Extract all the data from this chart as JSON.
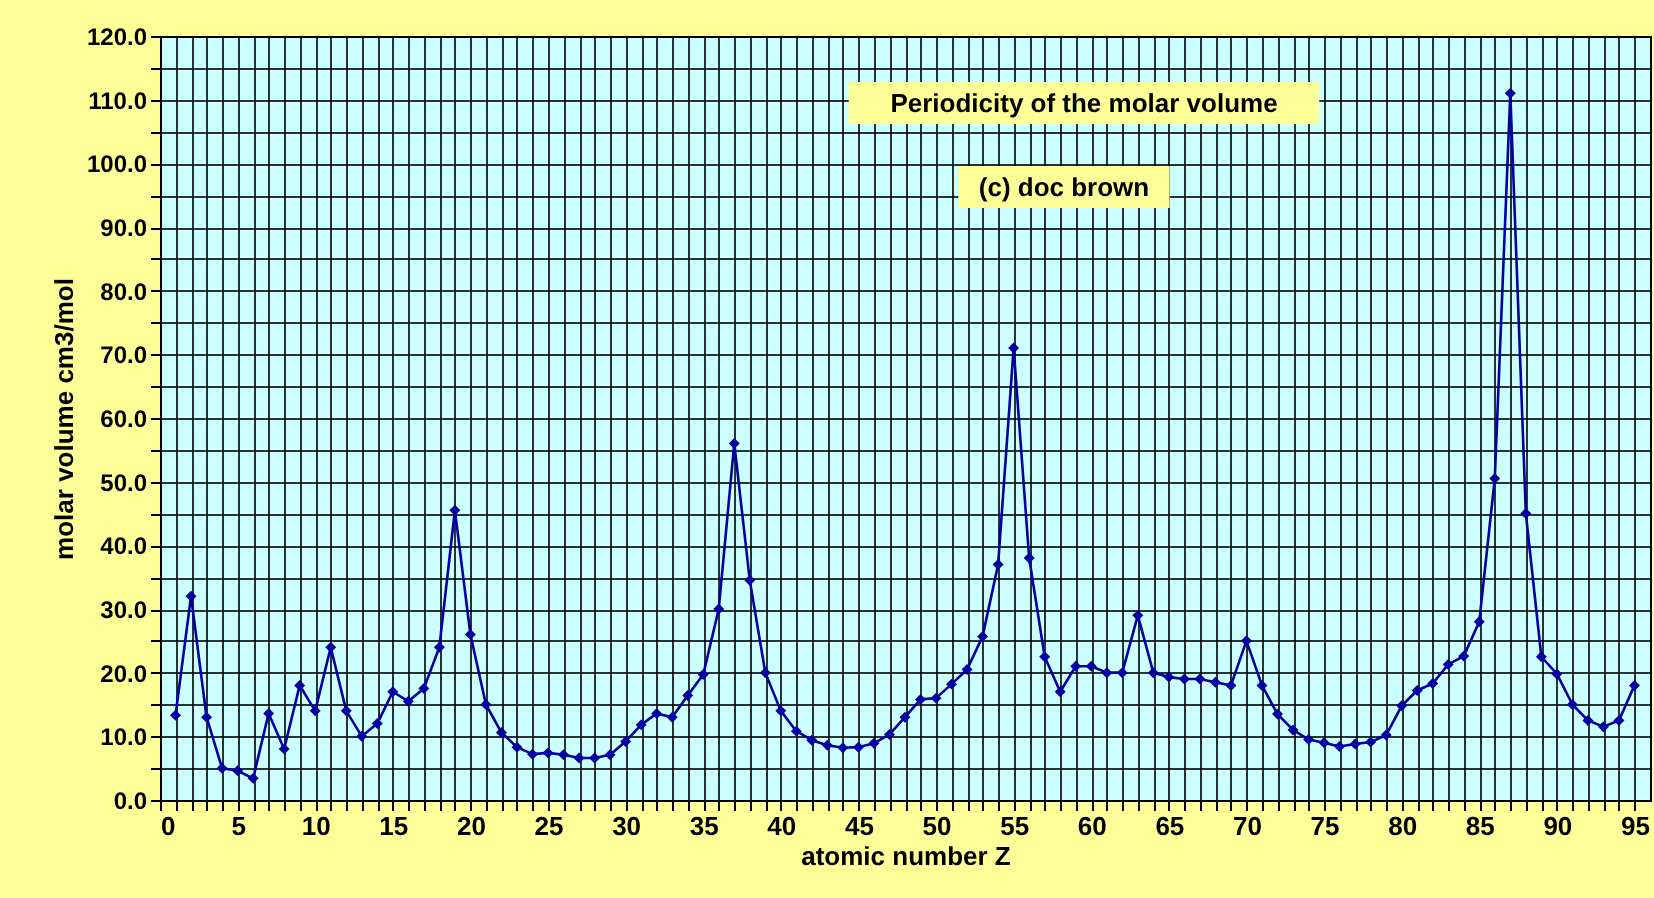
{
  "chart_data": {
    "type": "line",
    "title": "Periodicity of the molar volume",
    "annotations": [
      "(c) doc brown"
    ],
    "xlabel": "atomic number Z",
    "ylabel": "molar volume cm3/mol",
    "x": [
      1,
      2,
      3,
      4,
      5,
      6,
      7,
      8,
      9,
      10,
      11,
      12,
      13,
      14,
      15,
      16,
      17,
      18,
      19,
      20,
      21,
      22,
      23,
      24,
      25,
      26,
      27,
      28,
      29,
      30,
      31,
      32,
      33,
      34,
      35,
      36,
      37,
      38,
      39,
      40,
      41,
      42,
      43,
      44,
      45,
      46,
      47,
      48,
      49,
      50,
      51,
      52,
      53,
      54,
      55,
      56,
      57,
      58,
      59,
      60,
      61,
      62,
      63,
      64,
      65,
      66,
      67,
      68,
      69,
      70,
      71,
      72,
      73,
      74,
      75,
      76,
      77,
      78,
      79,
      80,
      81,
      82,
      83,
      84,
      85,
      86,
      87,
      88,
      89,
      90,
      91,
      92,
      93,
      94,
      95
    ],
    "series": [
      {
        "color": "#0000a0",
        "values": [
          13.3,
          32,
          13,
          5,
          4.6,
          3.4,
          13.6,
          8,
          18,
          14,
          24,
          14,
          10,
          12,
          17,
          15.5,
          17.5,
          24,
          45.5,
          26,
          15,
          10.6,
          8.3,
          7.2,
          7.4,
          7.1,
          6.6,
          6.6,
          7.1,
          9.2,
          11.8,
          13.6,
          13,
          16.4,
          19.7,
          30,
          56,
          34.5,
          20,
          14,
          10.8,
          9.4,
          8.6,
          8.2,
          8.3,
          8.9,
          10.3,
          13,
          15.8,
          16,
          18.2,
          20.5,
          25.7,
          37,
          71,
          38,
          22.5,
          17,
          21,
          21,
          20,
          20,
          29,
          20,
          19.3,
          19,
          19,
          18.5,
          18,
          25,
          18,
          13.5,
          11,
          9.5,
          9,
          8.4,
          8.8,
          9.1,
          10.2,
          14.8,
          17.2,
          18.3,
          21.3,
          22.6,
          28,
          50.5,
          111,
          45,
          22.5,
          19.8,
          15,
          12.5,
          11.5,
          12.5,
          18
        ]
      }
    ],
    "xlim": [
      0,
      96
    ],
    "ylim": [
      0,
      120
    ],
    "xticks": [
      0,
      {
        "value": 1,
        "label": null
      },
      {
        "value": 2,
        "label": null
      },
      {
        "value": 3,
        "label": null
      },
      {
        "value": 4,
        "label": null
      },
      5,
      {
        "value": 6,
        "label": null
      },
      {
        "value": 7,
        "label": null
      },
      {
        "value": 8,
        "label": null
      },
      {
        "value": 9,
        "label": null
      },
      10,
      {
        "value": 11,
        "label": null
      },
      {
        "value": 12,
        "label": null
      },
      {
        "value": 13,
        "label": null
      },
      {
        "value": 14,
        "label": null
      },
      15,
      {
        "value": 16,
        "label": null
      },
      {
        "value": 17,
        "label": null
      },
      {
        "value": 18,
        "label": null
      },
      {
        "value": 19,
        "label": null
      },
      20,
      {
        "value": 21,
        "label": null
      },
      {
        "value": 22,
        "label": null
      },
      {
        "value": 23,
        "label": null
      },
      {
        "value": 24,
        "label": null
      },
      25,
      {
        "value": 26,
        "label": null
      },
      {
        "value": 27,
        "label": null
      },
      {
        "value": 28,
        "label": null
      },
      {
        "value": 29,
        "label": null
      },
      30,
      {
        "value": 31,
        "label": null
      },
      {
        "value": 32,
        "label": null
      },
      {
        "value": 33,
        "label": null
      },
      {
        "value": 34,
        "label": null
      },
      35,
      {
        "value": 36,
        "label": null
      },
      {
        "value": 37,
        "label": null
      },
      {
        "value": 38,
        "label": null
      },
      {
        "value": 39,
        "label": null
      },
      40,
      {
        "value": 41,
        "label": null
      },
      {
        "value": 42,
        "label": null
      },
      {
        "value": 43,
        "label": null
      },
      {
        "value": 44,
        "label": null
      },
      45,
      {
        "value": 46,
        "label": null
      },
      {
        "value": 47,
        "label": null
      },
      {
        "value": 48,
        "label": null
      },
      {
        "value": 49,
        "label": null
      },
      50,
      {
        "value": 51,
        "label": null
      },
      {
        "value": 52,
        "label": null
      },
      {
        "value": 53,
        "label": null
      },
      {
        "value": 54,
        "label": null
      },
      55,
      {
        "value": 56,
        "label": null
      },
      {
        "value": 57,
        "label": null
      },
      {
        "value": 58,
        "label": null
      },
      {
        "value": 59,
        "label": null
      },
      60,
      {
        "value": 61,
        "label": null
      },
      {
        "value": 62,
        "label": null
      },
      {
        "value": 63,
        "label": null
      },
      {
        "value": 64,
        "label": null
      },
      65,
      {
        "value": 66,
        "label": null
      },
      {
        "value": 67,
        "label": null
      },
      {
        "value": 68,
        "label": null
      },
      {
        "value": 69,
        "label": null
      },
      70,
      {
        "value": 71,
        "label": null
      },
      {
        "value": 72,
        "label": null
      },
      {
        "value": 73,
        "label": null
      },
      {
        "value": 74,
        "label": null
      },
      75,
      {
        "value": 76,
        "label": null
      },
      {
        "value": 77,
        "label": null
      },
      {
        "value": 78,
        "label": null
      },
      {
        "value": 79,
        "label": null
      },
      80,
      {
        "value": 81,
        "label": null
      },
      {
        "value": 82,
        "label": null
      },
      {
        "value": 83,
        "label": null
      },
      {
        "value": 84,
        "label": null
      },
      85,
      {
        "value": 86,
        "label": null
      },
      {
        "value": 87,
        "label": null
      },
      {
        "value": 88,
        "label": null
      },
      {
        "value": 89,
        "label": null
      },
      90,
      {
        "value": 91,
        "label": null
      },
      {
        "value": 92,
        "label": null
      },
      {
        "value": 93,
        "label": null
      },
      {
        "value": 94,
        "label": null
      },
      95
    ],
    "yticks": [
      {
        "value": 0,
        "label": "0.0"
      },
      {
        "value": 5,
        "label": null
      },
      {
        "value": 10,
        "label": "10.0"
      },
      {
        "value": 15,
        "label": null
      },
      {
        "value": 20,
        "label": "20.0"
      },
      {
        "value": 25,
        "label": null
      },
      {
        "value": 30,
        "label": "30.0"
      },
      {
        "value": 35,
        "label": null
      },
      {
        "value": 40,
        "label": "40.0"
      },
      {
        "value": 45,
        "label": null
      },
      {
        "value": 50,
        "label": "50.0"
      },
      {
        "value": 55,
        "label": null
      },
      {
        "value": 60,
        "label": "60.0"
      },
      {
        "value": 65,
        "label": null
      },
      {
        "value": 70,
        "label": "70.0"
      },
      {
        "value": 75,
        "label": null
      },
      {
        "value": 80,
        "label": "80.0"
      },
      {
        "value": 85,
        "label": null
      },
      {
        "value": 90,
        "label": "90.0"
      },
      {
        "value": 95,
        "label": null
      },
      {
        "value": 100,
        "label": "100.0"
      },
      {
        "value": 105,
        "label": null
      },
      {
        "value": 110,
        "label": "110.0"
      },
      {
        "value": 115,
        "label": null
      },
      {
        "value": 120,
        "label": "120.0"
      }
    ],
    "grid": true,
    "marker": "diamond",
    "line_style": "solid"
  }
}
